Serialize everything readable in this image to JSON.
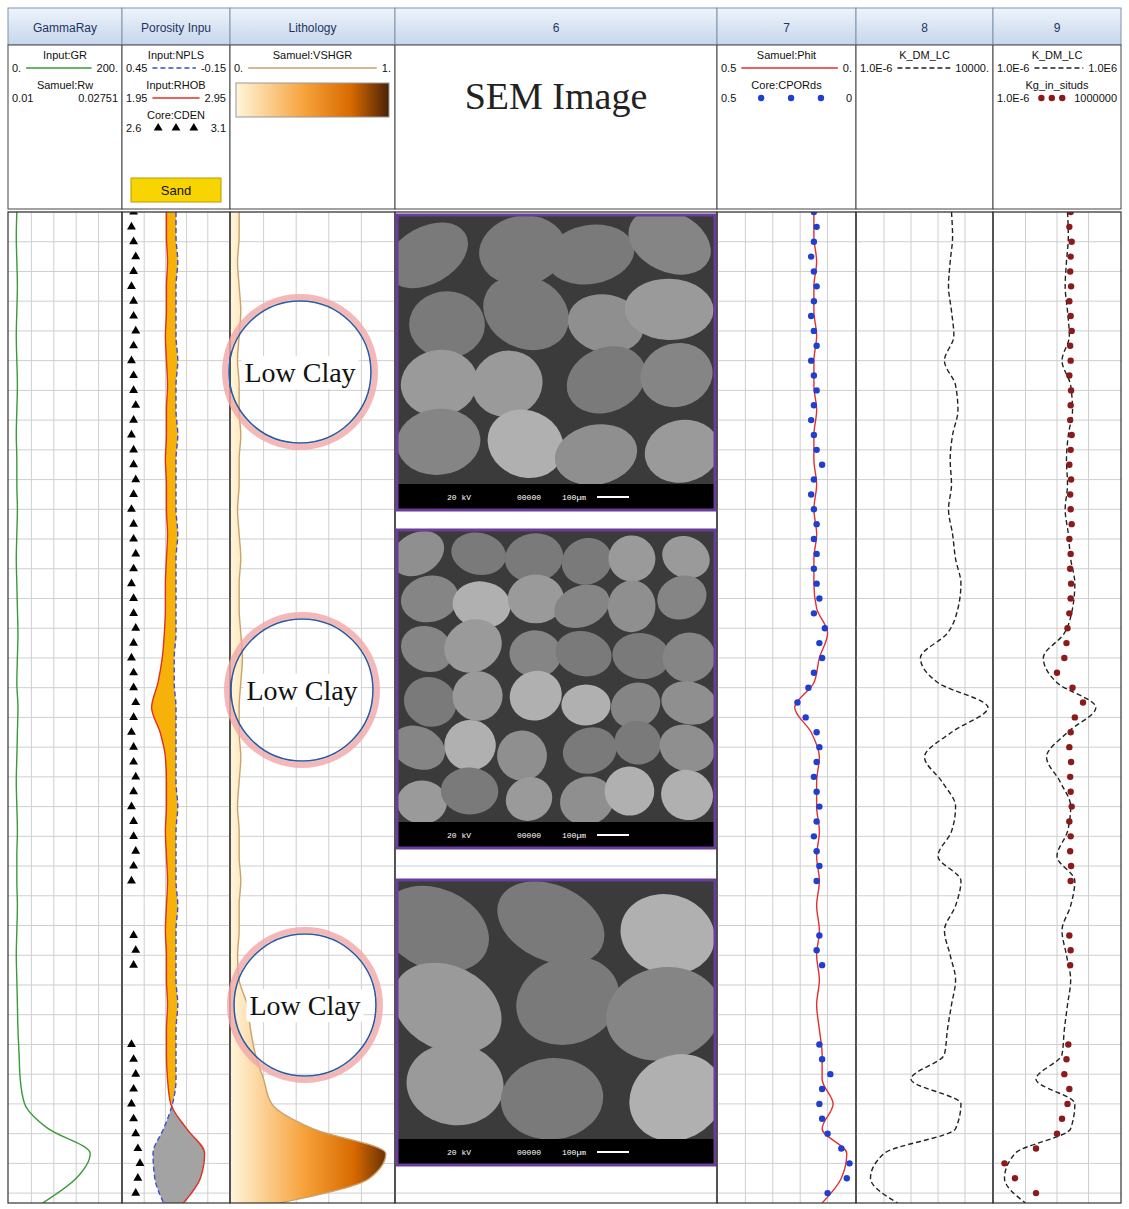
{
  "chart_data": {
    "type": "well_log",
    "ylim": [
      0,
      100
    ],
    "yticks": [
      0,
      3,
      6,
      9,
      12,
      15,
      18,
      21,
      24,
      27,
      30,
      33,
      36,
      39,
      42,
      45,
      48,
      51,
      54,
      57,
      60,
      63,
      66,
      69,
      72,
      75,
      78,
      81,
      84,
      87,
      90,
      93,
      96,
      99
    ],
    "grid": true,
    "tick_labels": false,
    "depth": [
      0,
      2.5,
      5,
      7.5,
      10,
      12.5,
      15,
      17.5,
      20,
      22.5,
      25,
      27.5,
      30,
      32.5,
      35,
      37.5,
      40,
      42.5,
      45,
      47.5,
      50,
      52.5,
      55,
      57.5,
      60,
      62.5,
      65,
      67.5,
      70,
      72.5,
      75,
      77.5,
      80,
      82.5,
      85,
      87.5,
      90,
      92.5,
      95,
      97.5,
      100
    ],
    "core_depth": [
      0,
      1.5,
      3,
      4.5,
      6,
      7.5,
      9,
      10.5,
      12,
      13.5,
      15,
      16.5,
      18,
      19.5,
      21,
      22.5,
      24,
      25.5,
      27,
      28.5,
      30,
      31.5,
      33,
      34.5,
      36,
      37.5,
      39,
      40.5,
      42,
      43.5,
      45,
      46.5,
      48,
      49.5,
      51,
      52.5,
      54,
      55.5,
      57,
      58.5,
      60,
      61.5,
      63,
      64.5,
      66,
      67.5,
      73,
      74.5,
      76,
      84,
      85.5,
      87,
      88.5,
      90,
      91.5,
      93,
      94.5,
      96,
      97.5,
      99
    ],
    "annotations": [
      "Low Clay",
      "Low Clay",
      "Low Clay"
    ],
    "tracks": [
      {
        "title": "GammaRay",
        "type": "curves",
        "grid_values": [
          40,
          80,
          120,
          160
        ],
        "curves": [
          {
            "name": "Input:GR",
            "color": "#3a9a3a",
            "line_style": "solid",
            "xlim": [
              0,
              200
            ],
            "xticks": [
              {
                "value": 0,
                "label": "0."
              },
              {
                "value": 200,
                "label": "200."
              }
            ],
            "values": [
              14,
              13,
              14,
              15,
              14,
              13,
              14,
              15,
              14,
              13,
              14,
              14,
              15,
              14,
              13,
              14,
              15,
              16,
              15,
              14,
              16,
              15,
              14,
              13,
              14,
              15,
              14,
              14,
              15,
              14,
              13,
              14,
              15,
              16,
              18,
              20,
              28,
              70,
              145,
              120,
              60
            ]
          },
          {
            "name": "Samuel:Rw",
            "xlim": [
              0.01,
              0.02751
            ],
            "xticks": [
              0.01,
              0.02751
            ]
          }
        ]
      },
      {
        "title": "Porosity Inpu",
        "type": "crossover",
        "badge": "Sand",
        "grid_values": [
          0.33,
          0.21,
          0.09,
          -0.03
        ],
        "curves": [
          {
            "name": "Input:NPLS",
            "color": "#3a4fd0",
            "line_style": "dashed",
            "xlim": [
              0.45,
              -0.15
            ],
            "xticks": [
              0.45,
              -0.15
            ],
            "values": [
              0.15,
              0.15,
              0.14,
              0.15,
              0.15,
              0.15,
              0.14,
              0.15,
              0.15,
              0.14,
              0.15,
              0.15,
              0.15,
              0.14,
              0.15,
              0.15,
              0.15,
              0.15,
              0.16,
              0.16,
              0.15,
              0.15,
              0.15,
              0.15,
              0.14,
              0.15,
              0.15,
              0.15,
              0.14,
              0.15,
              0.15,
              0.15,
              0.14,
              0.15,
              0.15,
              0.15,
              0.17,
              0.22,
              0.28,
              0.27,
              0.22
            ]
          },
          {
            "name": "Input:RHOB",
            "color": "#e03020",
            "line_style": "solid",
            "xlim": [
              1.95,
              2.95
            ],
            "xticks": [
              1.95,
              2.95
            ],
            "values": [
              2.36,
              2.36,
              2.37,
              2.36,
              2.36,
              2.35,
              2.36,
              2.37,
              2.36,
              2.36,
              2.35,
              2.36,
              2.36,
              2.37,
              2.36,
              2.35,
              2.35,
              2.34,
              2.32,
              2.28,
              2.22,
              2.3,
              2.35,
              2.36,
              2.36,
              2.35,
              2.36,
              2.37,
              2.36,
              2.35,
              2.36,
              2.36,
              2.37,
              2.36,
              2.36,
              2.37,
              2.4,
              2.55,
              2.72,
              2.68,
              2.52
            ]
          },
          {
            "name": "Core:CDEN",
            "color": "#000000",
            "marker": "triangle",
            "xlim": [
              2.6,
              3.1
            ],
            "xticks": [
              2.6,
              3.1
            ],
            "values": [
              2.65,
              2.64,
              2.65,
              2.66,
              2.65,
              2.64,
              2.65,
              2.65,
              2.66,
              2.65,
              2.64,
              2.65,
              2.65,
              2.66,
              2.65,
              2.64,
              2.65,
              2.65,
              2.66,
              2.65,
              2.64,
              2.65,
              2.65,
              2.66,
              2.65,
              2.64,
              2.65,
              2.65,
              2.66,
              2.65,
              2.64,
              2.65,
              2.65,
              2.66,
              2.65,
              2.64,
              2.65,
              2.65,
              2.66,
              2.65,
              2.64,
              2.65,
              2.65,
              2.66,
              2.65,
              2.64,
              2.65,
              2.66,
              2.65,
              2.64,
              2.65,
              2.66,
              2.65,
              2.64,
              2.65,
              2.66,
              2.67,
              2.68,
              2.67,
              2.66
            ]
          }
        ]
      },
      {
        "title": "Lithology",
        "type": "shaded",
        "grid_values": [
          0.2,
          0.4,
          0.6,
          0.8
        ],
        "curves": [
          {
            "name": "Samuel:VSHGR",
            "color": "#c9a26a",
            "line_style": "solid",
            "xlim": [
              0,
              1
            ],
            "xticks": [
              {
                "value": 0,
                "label": "0."
              },
              {
                "value": 1,
                "label": "1."
              }
            ],
            "values": [
              0.05,
              0.05,
              0.04,
              0.05,
              0.06,
              0.05,
              0.04,
              0.05,
              0.05,
              0.06,
              0.05,
              0.05,
              0.04,
              0.05,
              0.06,
              0.05,
              0.05,
              0.06,
              0.07,
              0.06,
              0.05,
              0.05,
              0.06,
              0.05,
              0.04,
              0.05,
              0.05,
              0.06,
              0.05,
              0.05,
              0.04,
              0.05,
              0.1,
              0.12,
              0.15,
              0.2,
              0.25,
              0.5,
              0.95,
              0.85,
              0.3
            ]
          }
        ]
      },
      {
        "title": "6",
        "type": "images",
        "heading": "SEM Image",
        "captions": [
          "20 kV",
          "00000",
          "100µm"
        ]
      },
      {
        "title": "7",
        "type": "curves",
        "grid_values": [
          0.4,
          0.3,
          0.2,
          0.1
        ],
        "curves": [
          {
            "name": "Samuel:Phit",
            "color": "#e03030",
            "line_style": "solid",
            "xlim": [
              0.5,
              0
            ],
            "xticks": [
              0.5,
              {
                "value": 0,
                "label": "0."
              }
            ],
            "values": [
              0.15,
              0.15,
              0.14,
              0.15,
              0.15,
              0.14,
              0.15,
              0.15,
              0.14,
              0.15,
              0.15,
              0.14,
              0.15,
              0.14,
              0.15,
              0.15,
              0.14,
              0.1,
              0.13,
              0.15,
              0.22,
              0.16,
              0.13,
              0.14,
              0.14,
              0.13,
              0.14,
              0.13,
              0.14,
              0.13,
              0.14,
              0.13,
              0.14,
              0.13,
              0.12,
              0.12,
              0.08,
              0.12,
              0.03,
              0.05,
              0.12
            ]
          },
          {
            "name": "Core:CPORds",
            "color": "#1f3fd0",
            "marker": "circle",
            "xlim": [
              0.5,
              0
            ],
            "xticks": [
              0.5,
              0
            ],
            "values": [
              0.15,
              0.14,
              0.15,
              0.16,
              0.15,
              0.14,
              0.15,
              0.16,
              0.15,
              0.14,
              0.16,
              0.15,
              0.14,
              0.15,
              0.16,
              0.15,
              0.14,
              0.12,
              0.15,
              0.16,
              0.15,
              0.14,
              0.15,
              0.14,
              0.15,
              0.14,
              0.13,
              0.15,
              0.11,
              0.13,
              0.12,
              0.15,
              0.17,
              0.21,
              0.18,
              0.14,
              0.13,
              0.14,
              0.15,
              0.14,
              0.13,
              0.14,
              0.15,
              0.14,
              0.13,
              0.14,
              0.13,
              0.14,
              0.12,
              0.13,
              0.12,
              0.09,
              0.12,
              0.13,
              0.12,
              0.1,
              0.05,
              0.02,
              0.03,
              0.1
            ]
          }
        ]
      },
      {
        "title": "8",
        "type": "curves",
        "grid_values": [
          0.0001,
          0.01,
          1,
          100
        ],
        "curves": [
          {
            "name": "K_DM_LC",
            "color": "#222222",
            "line_style": "dashed",
            "log": true,
            "xlim": [
              1e-06,
              10000
            ],
            "xticks": [
              {
                "value": 1e-06,
                "label": "1.0E-6"
              },
              {
                "value": 10000,
                "label": "10000."
              }
            ],
            "values": [
              10,
              12,
              8,
              6,
              10,
              15,
              3,
              20,
              30,
              12,
              8,
              10,
              6,
              12,
              20,
              50,
              30,
              5,
              0.05,
              1,
              5000,
              10,
              0.1,
              2,
              20,
              10,
              1,
              50,
              20,
              3,
              8,
              20,
              10,
              5,
              3,
              0.01,
              50,
              20,
              0.0001,
              1e-05,
              0.001
            ]
          }
        ]
      },
      {
        "title": "9",
        "type": "curves",
        "grid_values": [
          0.001,
          1,
          1000
        ],
        "curves": [
          {
            "name": "K_DM_LC",
            "color": "#222222",
            "line_style": "dashed",
            "log": true,
            "xlim": [
              1e-06,
              1000000
            ],
            "xticks": [
              {
                "value": 1e-06,
                "label": "1.0E-6"
              },
              {
                "value": 1000000,
                "label": "1.0E6"
              }
            ],
            "values": [
              10,
              12,
              8,
              6,
              10,
              15,
              3,
              20,
              30,
              12,
              8,
              10,
              6,
              12,
              20,
              50,
              30,
              5,
              0.05,
              1,
              5000,
              10,
              0.1,
              2,
              20,
              10,
              1,
              50,
              20,
              3,
              8,
              20,
              10,
              5,
              3,
              0.01,
              50,
              20,
              0.0001,
              1e-05,
              0.001
            ]
          },
          {
            "name": "Kg_in_situds",
            "color": "#8b1a1a",
            "marker": "circle",
            "log": true,
            "xlim": [
              1e-06,
              1000000
            ],
            "xticks": [
              {
                "value": 1e-06,
                "label": "1.0E-6"
              },
              1000000
            ],
            "values": [
              20,
              15,
              25,
              20,
              18,
              22,
              15,
              20,
              25,
              18,
              20,
              15,
              22,
              20,
              18,
              25,
              20,
              15,
              22,
              18,
              20,
              25,
              15,
              20,
              18,
              22,
              20,
              15,
              10,
              8,
              5,
              1,
              30,
              300,
              50,
              20,
              15,
              22,
              18,
              20,
              25,
              15,
              20,
              18,
              22,
              20,
              15,
              20,
              18,
              12,
              8,
              5,
              15,
              10,
              3,
              1,
              0.01,
              1e-05,
              0.0001,
              0.01
            ]
          }
        ]
      }
    ]
  }
}
